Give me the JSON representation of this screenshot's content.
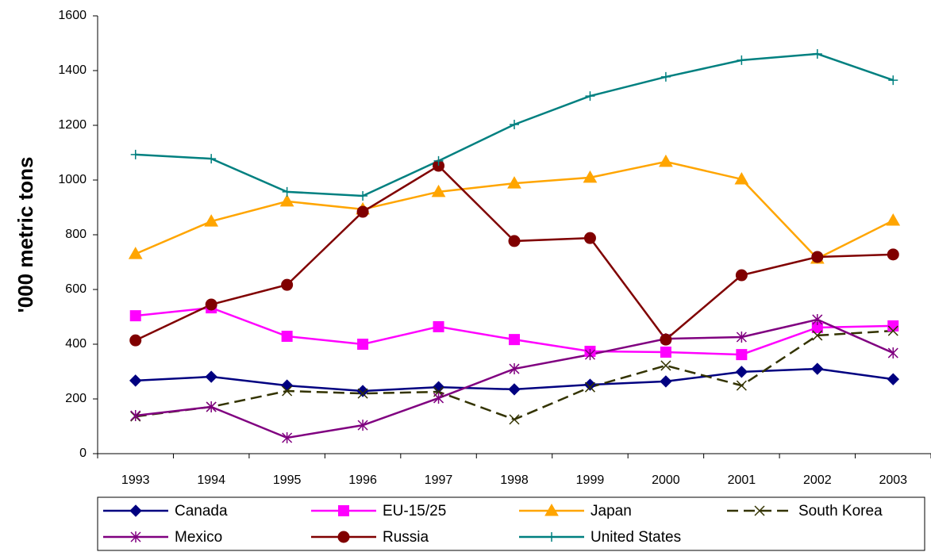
{
  "chart_data": {
    "type": "line",
    "y_label": "'000 metric tons",
    "categories": [
      "1993",
      "1994",
      "1995",
      "1996",
      "1997",
      "1998",
      "1999",
      "2000",
      "2001",
      "2002",
      "2003"
    ],
    "ylim": [
      0,
      1600
    ],
    "yticks": [
      0,
      200,
      400,
      600,
      800,
      1000,
      1200,
      1400,
      1600
    ],
    "grid": false,
    "legend": "bottom",
    "series": [
      {
        "name": "Canada",
        "color": "#000080",
        "marker": "diamond",
        "dash": false,
        "values": [
          267,
          281,
          249,
          229,
          243,
          235,
          252,
          264,
          299,
          310,
          272
        ]
      },
      {
        "name": "EU-15/25",
        "color": "#ff00ff",
        "marker": "square",
        "dash": false,
        "values": [
          504,
          533,
          429,
          400,
          464,
          417,
          374,
          371,
          362,
          461,
          467
        ]
      },
      {
        "name": "Japan",
        "color": "#ffa500",
        "marker": "triangle",
        "dash": false,
        "values": [
          730,
          849,
          922,
          893,
          957,
          988,
          1009,
          1067,
          1003,
          713,
          852
        ]
      },
      {
        "name": "South Korea",
        "color": "#333300",
        "marker": "x",
        "dash": true,
        "values": [
          136,
          171,
          229,
          220,
          226,
          125,
          243,
          322,
          249,
          432,
          449
        ]
      },
      {
        "name": "Mexico",
        "color": "#800080",
        "marker": "asterisk",
        "dash": false,
        "values": [
          139,
          171,
          58,
          104,
          203,
          310,
          362,
          420,
          426,
          490,
          368
        ]
      },
      {
        "name": "Russia",
        "color": "#800000",
        "marker": "circle",
        "dash": false,
        "values": [
          414,
          545,
          617,
          884,
          1052,
          777,
          788,
          417,
          652,
          719,
          728
        ]
      },
      {
        "name": "United States",
        "color": "#008080",
        "marker": "plus",
        "dash": false,
        "values": [
          1093,
          1078,
          957,
          942,
          1070,
          1203,
          1307,
          1377,
          1438,
          1461,
          1365
        ]
      }
    ]
  }
}
